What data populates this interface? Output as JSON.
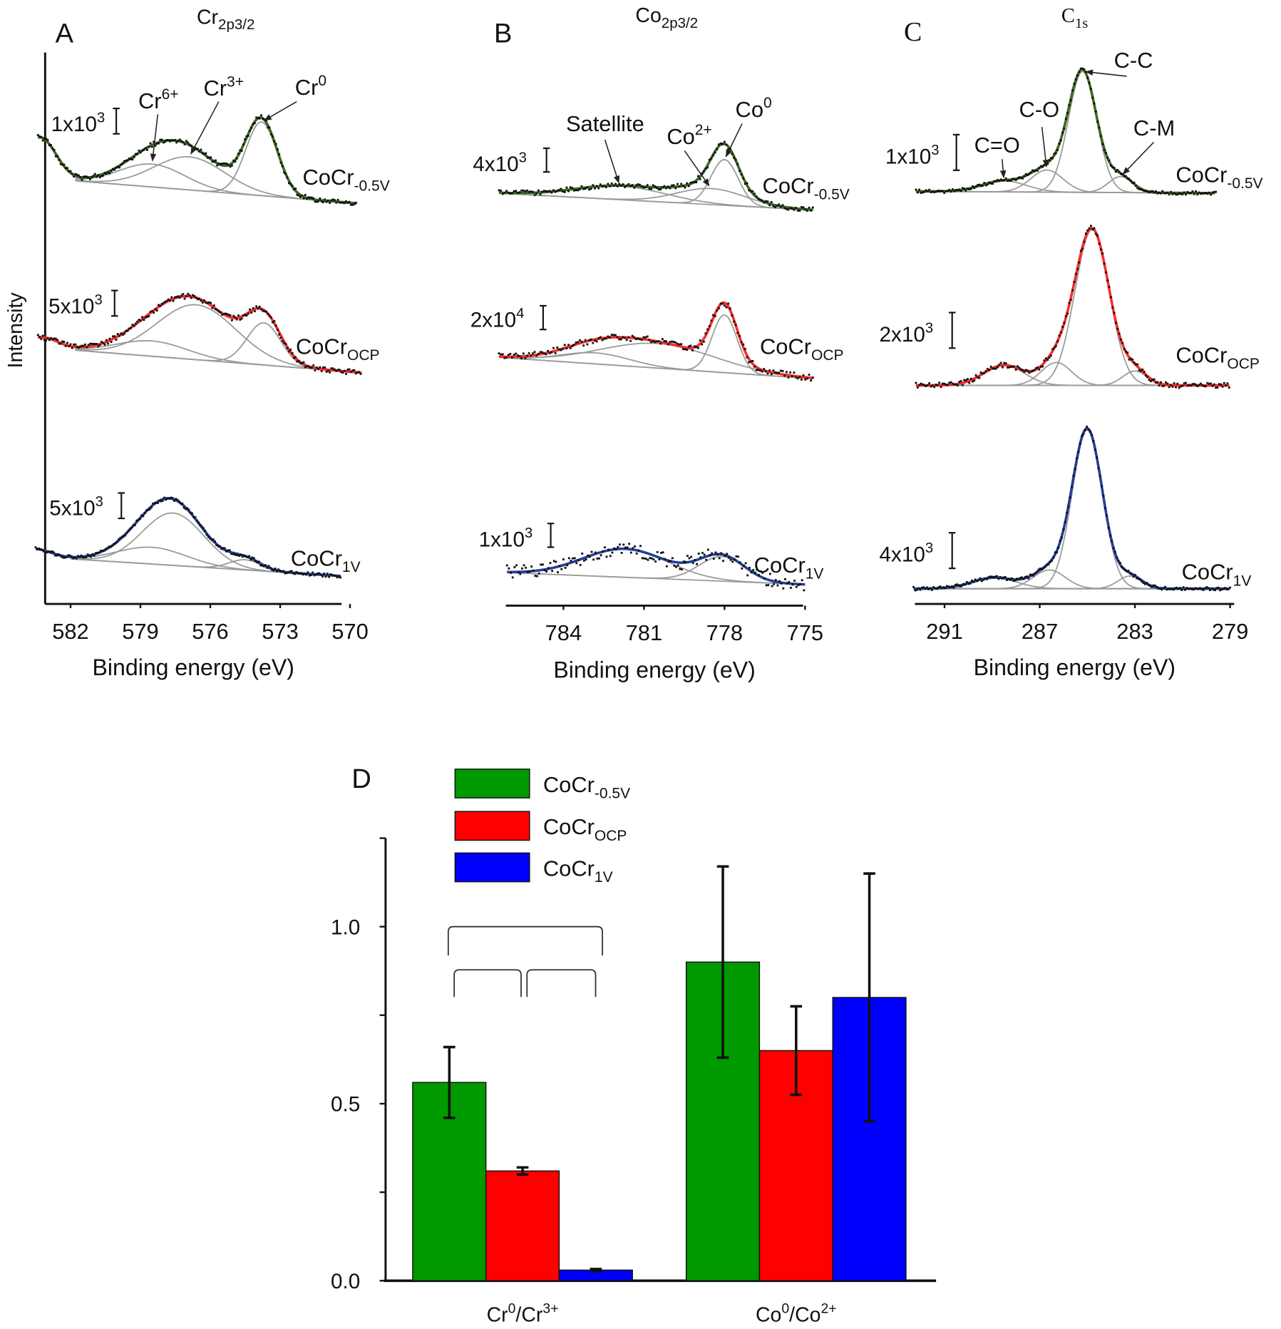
{
  "chart_data": [
    {
      "type": "line",
      "panel_label": "A",
      "title_base": "Cr",
      "title_sub": "2p3/2",
      "xlabel": "Binding energy (eV)",
      "ylabel": "Intensity",
      "x_reversed": true,
      "xlim": [
        583.1,
        570
      ],
      "xticks": [
        582,
        579,
        576,
        573,
        570
      ],
      "annotations": [
        {
          "base": "Cr",
          "sup": "6+",
          "component": 1
        },
        {
          "base": "Cr",
          "sup": "3+",
          "component": 2
        },
        {
          "base": "Cr",
          "sup": "0",
          "component": 3
        }
      ],
      "series": [
        {
          "name_base": "CoCr",
          "name_sub": "-0.5V",
          "color": "#3b6a1f",
          "scale_bar": 1000,
          "scale_base": "1x10",
          "scale_sup": "3",
          "range": [
            583.4,
            569.7
          ],
          "fit_range": [
            581.8,
            569.7
          ],
          "background_high": 1000,
          "components": [
            {
              "center": 583.3,
              "height": 1600,
              "fwhm": 1.6
            },
            {
              "center": 578.5,
              "height": 900,
              "fwhm": 3.3
            },
            {
              "center": 576.9,
              "height": 1300,
              "fwhm": 3.6
            },
            {
              "center": 573.8,
              "height": 2900,
              "fwhm": 1.6
            }
          ]
        },
        {
          "name_base": "CoCr",
          "name_sub": "OCP",
          "color": "#ff2a2a",
          "scale_bar": 5000,
          "scale_base": "5x10",
          "scale_sup": "3",
          "range": [
            583.4,
            569.5
          ],
          "fit_range": [
            581.8,
            569.5
          ],
          "background_high": 5000,
          "components": [
            {
              "center": 583.2,
              "height": 2000,
              "fwhm": 1.6
            },
            {
              "center": 578.5,
              "height": 3000,
              "fwhm": 3.6
            },
            {
              "center": 576.6,
              "height": 10800,
              "fwhm": 4.0
            },
            {
              "center": 573.7,
              "height": 8300,
              "fwhm": 1.7
            }
          ]
        },
        {
          "name_base": "CoCr",
          "name_sub": "1V",
          "color": "#233f9a",
          "scale_bar": 5000,
          "scale_base": "5x10",
          "scale_sup": "3",
          "range": [
            583.5,
            570.4
          ],
          "fit_range": [
            582.0,
            570.4
          ],
          "background_high": 3800,
          "components": [
            {
              "center": 583.5,
              "height": 1500,
              "fwhm": 1.6
            },
            {
              "center": 578.5,
              "height": 3300,
              "fwhm": 3.5
            },
            {
              "center": 577.6,
              "height": 10300,
              "fwhm": 3.1
            },
            {
              "center": 574.5,
              "height": 2000,
              "fwhm": 1.6
            }
          ]
        }
      ]
    },
    {
      "type": "line",
      "panel_label": "B",
      "title_base": "Co",
      "title_sub": "2p3/2",
      "xlabel": "Binding energy (eV)",
      "x_reversed": true,
      "xlim": [
        786.1,
        775
      ],
      "xticks": [
        784,
        781,
        778,
        775
      ],
      "annotations": [
        {
          "base": "Satellite",
          "sup": "",
          "component": 0
        },
        {
          "base": "Co",
          "sup": "2+",
          "component": 1
        },
        {
          "base": "Co",
          "sup": "0",
          "component": 2
        }
      ],
      "series": [
        {
          "name_base": "CoCr",
          "name_sub": "-0.5V",
          "color": "#3b6a1f",
          "scale_bar": 4000,
          "scale_base": "4x10",
          "scale_sup": "3",
          "range": [
            786.4,
            774.7
          ],
          "fit_range": [
            786.4,
            774.7
          ],
          "background_high": 2850,
          "components": [
            {
              "center": 781.9,
              "height": 2300,
              "fwhm": 4.0
            },
            {
              "center": 778.5,
              "height": 2700,
              "fwhm": 3.0
            },
            {
              "center": 778.0,
              "height": 7700,
              "fwhm": 1.2
            }
          ]
        },
        {
          "name_base": "CoCr",
          "name_sub": "OCP",
          "color": "#ff2a2a",
          "scale_bar": 20000,
          "scale_base": "2x10",
          "scale_sup": "4",
          "range": [
            786.4,
            774.7
          ],
          "fit_range": [
            786.4,
            774.7
          ],
          "background_high": 17900,
          "components": [
            {
              "center": 782.8,
              "height": 9300,
              "fwhm": 3.0
            },
            {
              "center": 780.5,
              "height": 20700,
              "fwhm": 5.0
            },
            {
              "center": 778.0,
              "height": 48600,
              "fwhm": 1.1
            }
          ]
        },
        {
          "name_base": "CoCr",
          "name_sub": "1V",
          "color": "#233f9a",
          "scale_bar": 1000,
          "scale_base": "1x10",
          "scale_sup": "3",
          "range": [
            786.1,
            775.0
          ],
          "fit_range": [
            786.1,
            775.0
          ],
          "background_high": 500,
          "components": [
            {
              "center": 781.7,
              "height": 1200,
              "fwhm": 3.7
            },
            {
              "center": 778.1,
              "height": 1040,
              "fwhm": 2.0
            }
          ]
        }
      ]
    },
    {
      "type": "line",
      "panel_label": "C",
      "title_base": "C",
      "title_sub": "1s",
      "xlabel": "Binding energy (eV)",
      "x_reversed": true,
      "xlim": [
        292.2,
        279
      ],
      "xticks": [
        291,
        287,
        283,
        279
      ],
      "annotations": [
        {
          "base": "C=O",
          "sup": "",
          "component": 0
        },
        {
          "base": "C-O",
          "sup": "",
          "component": 1
        },
        {
          "base": "C-C",
          "sup": "",
          "component": 2
        },
        {
          "base": "C-M",
          "sup": "",
          "component": 3
        }
      ],
      "series": [
        {
          "name_base": "CoCr",
          "name_sub": "-0.5V",
          "color": "#3b6a1f",
          "scale_bar": 1000,
          "scale_base": "1x10",
          "scale_sup": "3",
          "range": [
            292.2,
            279.6
          ],
          "fit_range": [
            292.2,
            279.6
          ],
          "background_high": 50,
          "components": [
            {
              "center": 288.5,
              "height": 310,
              "fwhm": 2.2
            },
            {
              "center": 286.7,
              "height": 620,
              "fwhm": 1.6
            },
            {
              "center": 285.2,
              "height": 3400,
              "fwhm": 1.4
            },
            {
              "center": 283.6,
              "height": 450,
              "fwhm": 1.2
            }
          ]
        },
        {
          "name_base": "CoCr",
          "name_sub": "OCP",
          "color": "#ff2a2a",
          "scale_bar": 2000,
          "scale_base": "2x10",
          "scale_sup": "3",
          "range": [
            292.2,
            279.0
          ],
          "fit_range": [
            292.2,
            279.0
          ],
          "background_high": 0,
          "components": [
            {
              "center": 288.5,
              "height": 1140,
              "fwhm": 2.0
            },
            {
              "center": 286.3,
              "height": 1290,
              "fwhm": 1.5
            },
            {
              "center": 284.8,
              "height": 8760,
              "fwhm": 1.7
            },
            {
              "center": 283.0,
              "height": 810,
              "fwhm": 1.2
            }
          ]
        },
        {
          "name_base": "CoCr",
          "name_sub": "1V",
          "color": "#233f9a",
          "scale_bar": 4000,
          "scale_base": "4x10",
          "scale_sup": "3",
          "range": [
            292.3,
            279.0
          ],
          "fit_range": [
            292.3,
            279.0
          ],
          "background_high": 0,
          "components": [
            {
              "center": 288.9,
              "height": 1240,
              "fwhm": 2.2
            },
            {
              "center": 286.6,
              "height": 2100,
              "fwhm": 1.6
            },
            {
              "center": 285.0,
              "height": 17900,
              "fwhm": 1.5
            },
            {
              "center": 283.2,
              "height": 1430,
              "fwhm": 1.2
            }
          ]
        }
      ]
    },
    {
      "type": "bar",
      "panel_label": "D",
      "categories": [
        {
          "a": "Cr",
          "a_sup": "0",
          "b": "/Cr",
          "b_sup": "3+"
        },
        {
          "a": "Co",
          "a_sup": "0",
          "b": "/Co",
          "b_sup": "2+"
        }
      ],
      "ylim": [
        0,
        1.25
      ],
      "yticks": [
        0.0,
        0.25,
        0.5,
        0.75,
        1.0,
        1.25
      ],
      "ytick_labels": [
        "0.0",
        "",
        "0.5",
        "",
        "1.0",
        ""
      ],
      "legend_position": "top-left",
      "series": [
        {
          "name_base": "CoCr",
          "name_sub": "-0.5V",
          "color": "#009900",
          "values": [
            0.56,
            0.9
          ],
          "errors": [
            0.1,
            0.27
          ]
        },
        {
          "name_base": "CoCr",
          "name_sub": "OCP",
          "color": "#ff0000",
          "values": [
            0.31,
            0.65
          ],
          "errors": [
            0.01,
            0.125
          ]
        },
        {
          "name_base": "CoCr",
          "name_sub": "1V",
          "color": "#0000ff",
          "values": [
            0.03,
            0.8
          ],
          "errors": [
            0.003,
            0.35
          ]
        }
      ],
      "significance_brackets": [
        {
          "from_series": 0,
          "to_series": 2,
          "category": 0
        },
        {
          "from_series": 0,
          "to_series": 1,
          "category": 0
        },
        {
          "from_series": 1,
          "to_series": 2,
          "category": 0
        }
      ]
    }
  ]
}
